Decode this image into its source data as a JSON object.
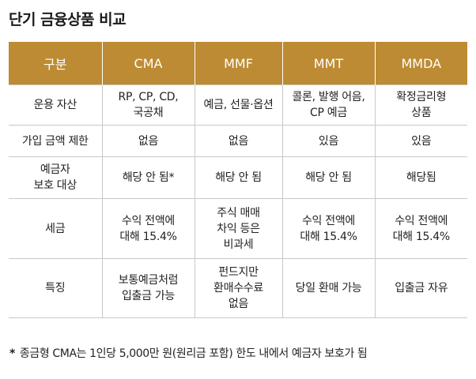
{
  "title": "단기 금융상품 비교",
  "table": {
    "headers": [
      "구분",
      "CMA",
      "MMF",
      "MMT",
      "MMDA"
    ],
    "rows": [
      [
        "운용 자산",
        "RP, CP, CD,\n국공채",
        "예금, 선물·옵션",
        "콜론, 발행 어음,\nCP 예금",
        "확정금리형\n상품"
      ],
      [
        "가입 금액 제한",
        "없음",
        "없음",
        "있음",
        "있음"
      ],
      [
        "예금자\n보호 대상",
        "해당 안 됨*",
        "해당 안 됨",
        "해당 안 됨",
        "해당됨"
      ],
      [
        "세금",
        "수익 전액에\n대해 15.4%",
        "주식 매매\n차익 등은\n비과세",
        "수익 전액에\n대해 15.4%",
        "수익 전액에\n대해 15.4%"
      ],
      [
        "특징",
        "보통예금처럼\n입출금 가능",
        "펀드지만\n환매수수료\n없음",
        "당일 환매 가능",
        "입출금 자유"
      ]
    ]
  },
  "footnote": {
    "mark": "*",
    "text": "종금형 CMA는 1인당 5,000만 원(원리금 포함) 한도 내에서 예금자 보호가 됨"
  },
  "colors": {
    "header_background": "#bd8b33",
    "header_text": "#ffffff",
    "grid_line": "#c8c8c8"
  }
}
